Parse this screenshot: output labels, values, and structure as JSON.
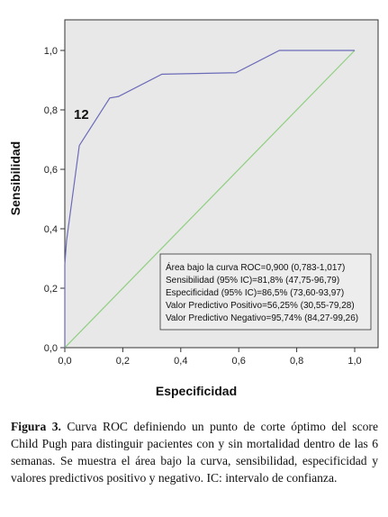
{
  "chart_data": {
    "type": "line",
    "xlabel": "Especificidad",
    "ylabel": "Sensibilidad",
    "xlim": [
      0,
      1
    ],
    "ylim": [
      0,
      1
    ],
    "x_ticks": [
      "0,0",
      "0,2",
      "0,4",
      "0,6",
      "0,8",
      "1,0"
    ],
    "y_ticks": [
      "0,0",
      "0,2",
      "0,4",
      "0,6",
      "0,8",
      "1,0"
    ],
    "grid": false,
    "series": [
      {
        "color": "#6b6bb8",
        "x": [
          0.0,
          0.0,
          0.006,
          0.05,
          0.155,
          0.185,
          0.335,
          0.59,
          0.74,
          1.0
        ],
        "y": [
          0.0,
          0.28,
          0.36,
          0.68,
          0.84,
          0.845,
          0.92,
          0.925,
          1.0,
          1.0
        ]
      },
      {
        "color": "#8fcf7f",
        "x": [
          0,
          1
        ],
        "y": [
          0,
          1
        ]
      }
    ],
    "annotations": [
      {
        "text": "12",
        "x": 0.06,
        "y": 0.78
      }
    ],
    "stats_box": [
      "Área bajo la curva ROC=0,900 (0,783-1,017)",
      "Sensibilidad (95% IC)=81,8% (47,75-96,79)",
      "Especificidad (95% IC)=86,5% (73,60-93,97)",
      "Valor Predictivo Positivo=56,25% (30,55-79,28)",
      "Valor Predictivo Negativo=95,74% (84,27-99,26)"
    ],
    "plot_background": "#e8e8e8"
  },
  "caption": {
    "label": "Figura 3.",
    "text": " Curva  ROC definiendo un punto de corte óptimo del score Child Pugh  para distinguir pacientes con y sin mortalidad dentro de las 6 semanas. Se muestra el área bajo la curva, sensibilidad, especificidad y valores predictivos positivo y negativo. IC: intervalo de confianza."
  }
}
